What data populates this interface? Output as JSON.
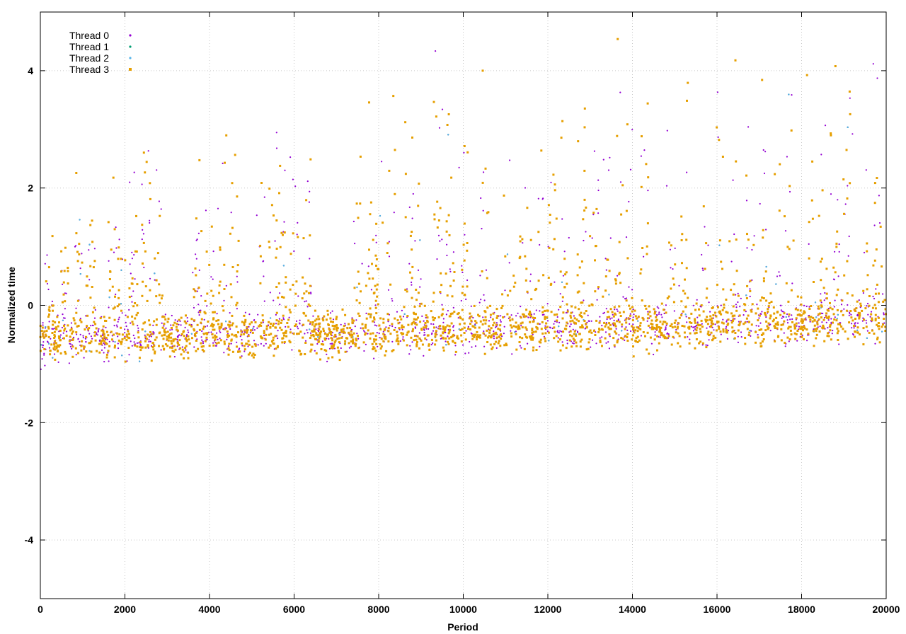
{
  "chart_data": {
    "type": "scatter",
    "title": "",
    "xlabel": "Period",
    "ylabel": "Normalized time",
    "xlim": [
      0,
      20000
    ],
    "ylim": [
      -5,
      5
    ],
    "x_ticks": [
      0,
      2000,
      4000,
      6000,
      8000,
      10000,
      12000,
      14000,
      16000,
      18000,
      20000
    ],
    "y_ticks": [
      -4,
      -2,
      0,
      2,
      4
    ],
    "grid": true,
    "legend_position": "top-left",
    "series": [
      {
        "name": "Thread 0",
        "color": "#9400d3",
        "marker": "dot"
      },
      {
        "name": "Thread 1",
        "color": "#009e73",
        "marker": "dot"
      },
      {
        "name": "Thread 2",
        "color": "#56b4e9",
        "marker": "dot"
      },
      {
        "name": "Thread 3",
        "color": "#e69f00",
        "marker": "square"
      }
    ],
    "distribution_summary": {
      "baseline_band": [
        -1.3,
        0.3
      ],
      "points_per_series_approx": 20000,
      "burst_periods": [
        200,
        600,
        900,
        1200,
        1700,
        1900,
        2200,
        2500,
        2800,
        3700,
        4000,
        4300,
        4600,
        5200,
        5500,
        5700,
        6000,
        6300,
        7500,
        7800,
        8000,
        8300,
        8700,
        8900,
        9400,
        9700,
        10000,
        10500,
        11000,
        11300,
        11500,
        11800,
        12100,
        12400,
        12800,
        13100,
        13400,
        13700,
        13900,
        14300,
        14900,
        15200,
        15700,
        16100,
        16400,
        16800,
        17100,
        17400,
        17700,
        18200,
        18500,
        18800,
        19100,
        19500,
        19800
      ]
    }
  }
}
